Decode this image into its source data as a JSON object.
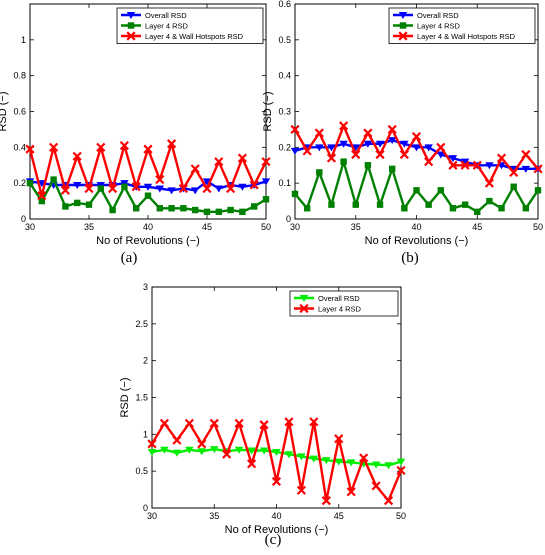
{
  "chart_data": [
    {
      "type": "line",
      "caption": "(a)",
      "xlabel": "No of Revolutions (−)",
      "ylabel": "RSD (−)",
      "xlim": [
        30,
        50
      ],
      "ylim": [
        0,
        1.2
      ],
      "xticks": [
        30,
        35,
        40,
        45,
        50
      ],
      "yticks": [
        0,
        0.2,
        0.4,
        0.6,
        0.8,
        1
      ],
      "legend_position": "top-right",
      "x": [
        30,
        31,
        32,
        33,
        34,
        35,
        36,
        37,
        38,
        39,
        40,
        41,
        42,
        43,
        44,
        45,
        46,
        47,
        48,
        49,
        50
      ],
      "series": [
        {
          "name": "Overall RSD",
          "color": "#0000ff",
          "marker": "triangle-down",
          "values": [
            0.21,
            0.2,
            0.19,
            0.19,
            0.19,
            0.19,
            0.19,
            0.19,
            0.2,
            0.18,
            0.18,
            0.17,
            0.16,
            0.17,
            0.16,
            0.21,
            0.17,
            0.19,
            0.18,
            0.19,
            0.21
          ]
        },
        {
          "name": "Layer 4 RSD",
          "color": "#008000",
          "marker": "square",
          "values": [
            0.2,
            0.1,
            0.22,
            0.07,
            0.09,
            0.08,
            0.17,
            0.05,
            0.18,
            0.06,
            0.13,
            0.06,
            0.06,
            0.06,
            0.05,
            0.04,
            0.04,
            0.05,
            0.04,
            0.07,
            0.11
          ]
        },
        {
          "name": "Layer 4 & Wall Hotspots RSD",
          "color": "#ff0000",
          "marker": "x",
          "values": [
            0.39,
            0.13,
            0.4,
            0.16,
            0.35,
            0.17,
            0.4,
            0.17,
            0.41,
            0.18,
            0.39,
            0.22,
            0.42,
            0.17,
            0.28,
            0.17,
            0.32,
            0.17,
            0.34,
            0.19,
            0.32
          ]
        }
      ]
    },
    {
      "type": "line",
      "caption": "(b)",
      "xlabel": "No of Revolutions (−)",
      "ylabel": "RSD (−)",
      "xlim": [
        30,
        50
      ],
      "ylim": [
        0,
        0.6
      ],
      "xticks": [
        30,
        35,
        40,
        45,
        50
      ],
      "yticks": [
        0,
        0.1,
        0.2,
        0.3,
        0.4,
        0.5,
        0.6
      ],
      "legend_position": "top-right",
      "x": [
        30,
        31,
        32,
        33,
        34,
        35,
        36,
        37,
        38,
        39,
        40,
        41,
        42,
        43,
        44,
        45,
        46,
        47,
        48,
        49,
        50
      ],
      "series": [
        {
          "name": "Overall RSD",
          "color": "#0000ff",
          "marker": "triangle-down",
          "values": [
            0.19,
            0.2,
            0.2,
            0.2,
            0.21,
            0.2,
            0.21,
            0.21,
            0.22,
            0.21,
            0.2,
            0.2,
            0.18,
            0.17,
            0.16,
            0.15,
            0.15,
            0.15,
            0.14,
            0.14,
            0.14
          ]
        },
        {
          "name": "Layer 4 RSD",
          "color": "#008000",
          "marker": "square",
          "values": [
            0.07,
            0.03,
            0.13,
            0.04,
            0.16,
            0.04,
            0.15,
            0.04,
            0.14,
            0.03,
            0.08,
            0.04,
            0.08,
            0.03,
            0.04,
            0.02,
            0.05,
            0.03,
            0.09,
            0.03,
            0.08
          ]
        },
        {
          "name": "Layer 4 & Wall Hotspots RSD",
          "color": "#ff0000",
          "marker": "x",
          "values": [
            0.25,
            0.19,
            0.24,
            0.17,
            0.26,
            0.18,
            0.24,
            0.18,
            0.25,
            0.18,
            0.23,
            0.16,
            0.2,
            0.15,
            0.15,
            0.15,
            0.1,
            0.17,
            0.13,
            0.18,
            0.14
          ]
        }
      ]
    },
    {
      "type": "line",
      "caption": "(c)",
      "xlabel": "No of Revolutions (−)",
      "ylabel": "RSD (−)",
      "xlim": [
        30,
        50
      ],
      "ylim": [
        0,
        3
      ],
      "xticks": [
        30,
        35,
        40,
        45,
        50
      ],
      "yticks": [
        0,
        0.5,
        1,
        1.5,
        2,
        2.5,
        3
      ],
      "legend_position": "top-right",
      "x": [
        30,
        31,
        32,
        33,
        34,
        35,
        36,
        37,
        38,
        39,
        40,
        41,
        42,
        43,
        44,
        45,
        46,
        47,
        48,
        49,
        50
      ],
      "series": [
        {
          "name": "Overall RSD",
          "color": "#00ee00",
          "marker": "triangle-down",
          "values": [
            0.76,
            0.79,
            0.75,
            0.79,
            0.77,
            0.8,
            0.77,
            0.79,
            0.78,
            0.78,
            0.76,
            0.73,
            0.7,
            0.67,
            0.65,
            0.63,
            0.62,
            0.6,
            0.59,
            0.58,
            0.63
          ]
        },
        {
          "name": "Layer 4 RSD",
          "color": "#ff0000",
          "marker": "x",
          "values": [
            0.87,
            1.15,
            0.92,
            1.15,
            0.87,
            1.15,
            0.73,
            1.15,
            0.6,
            1.13,
            0.36,
            1.17,
            0.24,
            1.17,
            0.1,
            0.94,
            0.22,
            0.68,
            0.3,
            0.1,
            0.51
          ]
        }
      ]
    }
  ]
}
